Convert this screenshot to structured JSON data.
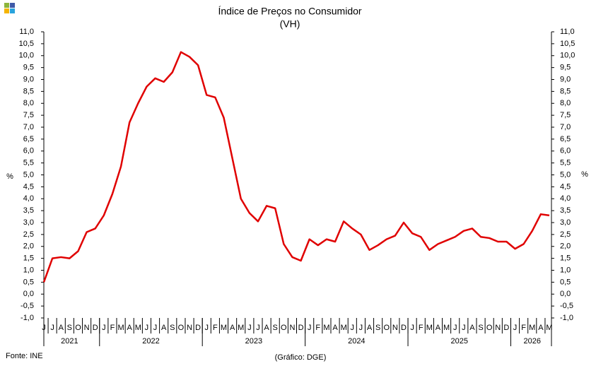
{
  "chart_data": {
    "type": "line",
    "title": "Índice de Preços no Consumidor",
    "subtitle": "(VH)",
    "y_label": "%",
    "source": "Fonte: INE",
    "credit": "(Gráfico: DGE)",
    "categories": [
      "J",
      "J",
      "A",
      "S",
      "O",
      "N",
      "D",
      "J",
      "F",
      "M",
      "A",
      "M",
      "J",
      "J",
      "A",
      "S",
      "O",
      "N",
      "D",
      "J",
      "F",
      "M",
      "A",
      "M",
      "J",
      "J",
      "A",
      "S",
      "O",
      "N",
      "D",
      "J",
      "F",
      "M",
      "A",
      "M",
      "J",
      "J",
      "A",
      "S",
      "O",
      "N",
      "D",
      "J",
      "F",
      "M",
      "A",
      "M",
      "J",
      "J",
      "A",
      "S",
      "O",
      "N",
      "D",
      "J",
      "F",
      "M",
      "A",
      "M"
    ],
    "years": [
      "2021",
      "2022",
      "2023",
      "2024",
      "2025",
      "2026"
    ],
    "series": [
      {
        "name": "VH",
        "color": "#e00000",
        "values": [
          0.5,
          1.5,
          1.55,
          1.5,
          1.8,
          2.6,
          2.75,
          3.3,
          4.2,
          5.35,
          7.2,
          8.0,
          8.7,
          9.05,
          8.9,
          9.3,
          10.15,
          9.95,
          9.6,
          8.35,
          8.25,
          7.4,
          5.7,
          4.0,
          3.4,
          3.05,
          3.7,
          3.6,
          2.1,
          1.55,
          1.4,
          2.3,
          2.05,
          2.3,
          2.2,
          3.05,
          2.75,
          2.5,
          1.85,
          2.05,
          2.3,
          2.45,
          3.0,
          2.55,
          2.4,
          1.85,
          2.1,
          2.25,
          2.4,
          2.65,
          2.75,
          2.4,
          2.35,
          2.2,
          2.2,
          1.9,
          2.1,
          2.65,
          3.35,
          3.3
        ]
      }
    ],
    "ylim": [
      -1.0,
      11.0
    ],
    "yticks": [
      {
        "value": -1.0,
        "label": "-1,0"
      },
      {
        "value": -0.5,
        "label": "-0,5"
      },
      {
        "value": 0.0,
        "label": "0,0"
      },
      {
        "value": 0.5,
        "label": "0,5"
      },
      {
        "value": 1.0,
        "label": "1,0"
      },
      {
        "value": 1.5,
        "label": "1,5"
      },
      {
        "value": 2.0,
        "label": "2,0"
      },
      {
        "value": 2.5,
        "label": "2,5"
      },
      {
        "value": 3.0,
        "label": "3,0"
      },
      {
        "value": 3.5,
        "label": "3,5"
      },
      {
        "value": 4.0,
        "label": "4,0"
      },
      {
        "value": 4.5,
        "label": "4,5"
      },
      {
        "value": 5.0,
        "label": "5,0"
      },
      {
        "value": 5.5,
        "label": "5,5"
      },
      {
        "value": 6.0,
        "label": "6,0"
      },
      {
        "value": 6.5,
        "label": "6,5"
      },
      {
        "value": 7.0,
        "label": "7,0"
      },
      {
        "value": 7.5,
        "label": "7,5"
      },
      {
        "value": 8.0,
        "label": "8,0"
      },
      {
        "value": 8.5,
        "label": "8,5"
      },
      {
        "value": 9.0,
        "label": "9,0"
      },
      {
        "value": 9.5,
        "label": "9,5"
      },
      {
        "value": 10.0,
        "label": "10,0"
      },
      {
        "value": 10.5,
        "label": "10,5"
      },
      {
        "value": 11.0,
        "label": "11,0"
      }
    ]
  }
}
